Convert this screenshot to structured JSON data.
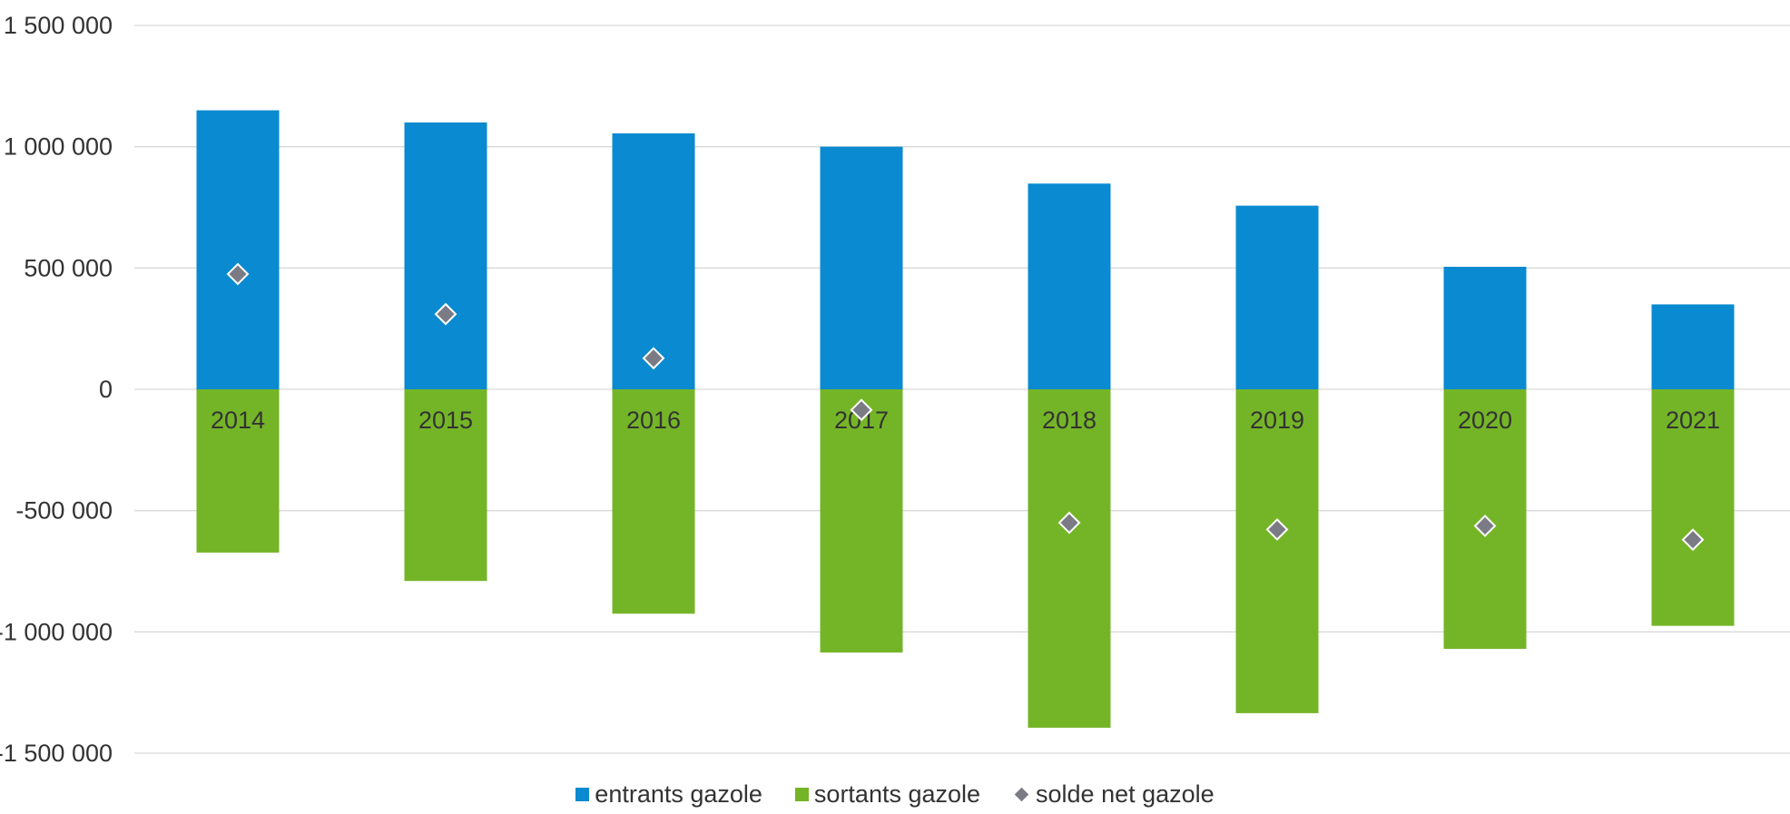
{
  "chart_data": {
    "type": "bar",
    "categories": [
      "2014",
      "2015",
      "2016",
      "2017",
      "2018",
      "2019",
      "2020",
      "2021"
    ],
    "series": [
      {
        "name": "entrants gazole",
        "kind": "bar",
        "color": "#0a8ad0",
        "values": [
          1150000,
          1100000,
          1055000,
          1000000,
          848000,
          757000,
          505000,
          350000
        ]
      },
      {
        "name": "sortants gazole",
        "kind": "bar",
        "color": "#74b527",
        "values": [
          -673000,
          -790000,
          -925000,
          -1085000,
          -1395000,
          -1335000,
          -1070000,
          -975000
        ]
      },
      {
        "name": "solde net gazole",
        "kind": "scatter",
        "marker": "diamond",
        "color": "#7b7b85",
        "values": [
          475000,
          310000,
          128000,
          -85000,
          -550000,
          -578000,
          -563000,
          -620000
        ]
      }
    ],
    "yticks": [
      "1 500 000",
      "1 000 000",
      "500 000",
      "0",
      "-500 000",
      "-1 000 000",
      "-1 500 000"
    ],
    "ylim": [
      -1500000,
      1500000
    ],
    "grid": true,
    "legend_position": "bottom"
  }
}
